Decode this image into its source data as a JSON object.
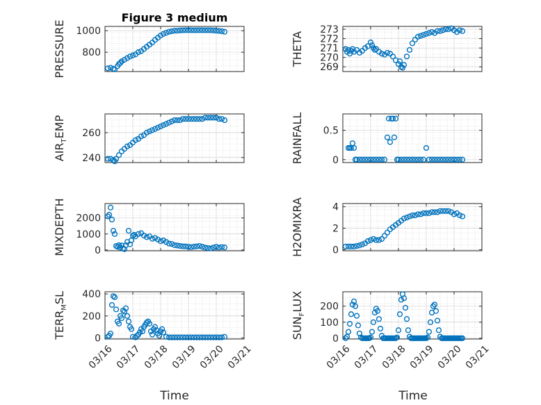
{
  "figure": {
    "title": "Figure 3 medium",
    "xlabel": "Time",
    "marker_color": "#0072BD"
  },
  "chart_data": [
    {
      "id": "pressure",
      "type": "scatter",
      "ylabel": "PRESSURE",
      "ylim": [
        620,
        1040
      ],
      "yticks": [
        800,
        1000
      ],
      "ytick_labels": [
        "800",
        "1000"
      ],
      "x_dates": [
        "03/16",
        "03/17",
        "03/18",
        "03/19",
        "03/20",
        "03/21"
      ],
      "xlim": [
        0,
        5
      ],
      "grid": "on",
      "series": [
        {
          "x": [
            0.1,
            0.2,
            0.3,
            0.35,
            0.45,
            0.5,
            0.55,
            0.6,
            0.7,
            0.8,
            0.9,
            1.0,
            1.1,
            1.2,
            1.3,
            1.4,
            1.5,
            1.6,
            1.7,
            1.8,
            1.9,
            2.0,
            2.1,
            2.2,
            2.3,
            2.4,
            2.5,
            2.6,
            2.7,
            2.8,
            2.9,
            3.0,
            3.1,
            3.2,
            3.3,
            3.4,
            3.5,
            3.6,
            3.7,
            3.8,
            3.9,
            4.0,
            4.1,
            4.2,
            4.3
          ],
          "y": [
            650,
            655,
            645,
            640,
            670,
            690,
            700,
            715,
            730,
            745,
            760,
            770,
            780,
            800,
            810,
            830,
            850,
            870,
            890,
            915,
            935,
            955,
            970,
            980,
            990,
            995,
            1000,
            1000,
            1003,
            1004,
            1005,
            1005,
            1005,
            1004,
            1005,
            1005,
            1005,
            1004,
            1005,
            1004,
            1003,
            1000,
            998,
            995,
            990
          ]
        }
      ]
    },
    {
      "id": "theta",
      "type": "scatter",
      "ylabel": "THETA",
      "ylim": [
        268.5,
        273.3
      ],
      "yticks": [
        269,
        270,
        271,
        272,
        273
      ],
      "ytick_labels": [
        "269",
        "270",
        "271",
        "272",
        "273"
      ],
      "x_dates": [
        "03/16",
        "03/17",
        "03/18",
        "03/19",
        "03/20",
        "03/21"
      ],
      "xlim": [
        0,
        5
      ],
      "grid": "on",
      "series": [
        {
          "x": [
            0.1,
            0.15,
            0.2,
            0.25,
            0.3,
            0.35,
            0.4,
            0.5,
            0.6,
            0.7,
            0.8,
            0.9,
            1.0,
            1.05,
            1.1,
            1.15,
            1.2,
            1.3,
            1.4,
            1.5,
            1.6,
            1.7,
            1.8,
            1.9,
            2.0,
            2.05,
            2.1,
            2.15,
            2.2,
            2.3,
            2.4,
            2.5,
            2.6,
            2.7,
            2.8,
            2.9,
            3.0,
            3.1,
            3.2,
            3.3,
            3.4,
            3.5,
            3.6,
            3.7,
            3.8,
            3.9,
            4.0,
            4.1,
            4.2,
            4.3
          ],
          "y": [
            270.9,
            270.6,
            270.8,
            270.4,
            270.7,
            270.9,
            270.6,
            270.8,
            270.5,
            270.7,
            271.0,
            271.2,
            271.6,
            271.3,
            271.0,
            270.8,
            270.9,
            270.6,
            270.4,
            270.3,
            270.5,
            270.4,
            270.1,
            269.7,
            269.3,
            269.6,
            269.0,
            268.9,
            269.2,
            270.1,
            270.8,
            271.5,
            271.9,
            272.2,
            272.3,
            272.4,
            272.5,
            272.6,
            272.7,
            272.6,
            272.8,
            272.8,
            272.9,
            273.0,
            273.0,
            273.1,
            272.9,
            272.7,
            272.9,
            272.8
          ]
        }
      ]
    },
    {
      "id": "air_temp",
      "type": "scatter",
      "ylabel": "AIR_TEMP",
      "ylabel_main": "AIR",
      "ylabel_sub": "T",
      "ylabel_rest": "EMP",
      "ylim": [
        236,
        275
      ],
      "yticks": [
        240,
        260
      ],
      "ytick_labels": [
        "240",
        "260"
      ],
      "x_dates": [
        "03/16",
        "03/17",
        "03/18",
        "03/19",
        "03/20",
        "03/21"
      ],
      "xlim": [
        0,
        5
      ],
      "grid": "on",
      "series": [
        {
          "x": [
            0.1,
            0.2,
            0.3,
            0.35,
            0.4,
            0.5,
            0.6,
            0.7,
            0.8,
            0.9,
            1.0,
            1.1,
            1.2,
            1.3,
            1.4,
            1.5,
            1.6,
            1.7,
            1.8,
            1.9,
            2.0,
            2.1,
            2.2,
            2.3,
            2.4,
            2.5,
            2.6,
            2.7,
            2.8,
            2.9,
            3.0,
            3.1,
            3.2,
            3.3,
            3.4,
            3.5,
            3.6,
            3.7,
            3.8,
            3.9,
            4.0,
            4.1,
            4.2,
            4.3
          ],
          "y": [
            239,
            239,
            238,
            237,
            239,
            242,
            245,
            247,
            249,
            250,
            252,
            254,
            255,
            257,
            258,
            260,
            261,
            262,
            263,
            264,
            265,
            266,
            267,
            268,
            269,
            270,
            270,
            270,
            271,
            271,
            271,
            271,
            271,
            271,
            271,
            271,
            272,
            272,
            272,
            272,
            272,
            271,
            271,
            270
          ]
        }
      ]
    },
    {
      "id": "rainfall",
      "type": "scatter",
      "ylabel": "RAINFALL",
      "ylim": [
        -0.05,
        0.78
      ],
      "yticks": [
        0,
        0.5
      ],
      "ytick_labels": [
        "0",
        "0.5"
      ],
      "x_dates": [
        "03/16",
        "03/17",
        "03/18",
        "03/19",
        "03/20",
        "03/21"
      ],
      "xlim": [
        0,
        5
      ],
      "grid": "on",
      "series": [
        {
          "x": [
            0.2,
            0.25,
            0.3,
            0.35,
            0.4,
            0.45,
            0.5,
            0.6,
            0.7,
            0.8,
            0.9,
            1.0,
            1.1,
            1.2,
            1.3,
            1.4,
            1.5,
            1.6,
            1.65,
            1.7,
            1.75,
            1.8,
            1.85,
            1.9,
            1.95,
            2.0,
            2.1,
            2.2,
            2.3,
            2.4,
            2.5,
            2.6,
            2.7,
            2.8,
            2.9,
            3.0,
            3.1,
            3.2,
            3.3,
            3.4,
            3.5,
            3.6,
            3.7,
            3.8,
            3.9,
            4.0,
            4.1,
            4.2,
            4.3
          ],
          "y": [
            0.2,
            0.2,
            0.2,
            0.28,
            0.2,
            0,
            0,
            0,
            0,
            0,
            0,
            0,
            0,
            0,
            0,
            0,
            0,
            0.38,
            0.7,
            0.3,
            0.7,
            0.7,
            0.38,
            0.7,
            0,
            0,
            0,
            0,
            0,
            0,
            0,
            0,
            0,
            0,
            0,
            0.2,
            0,
            0,
            0,
            0,
            0,
            0,
            0,
            0,
            0,
            0,
            0,
            0,
            0
          ]
        }
      ]
    },
    {
      "id": "mixdepth",
      "type": "scatter",
      "ylabel": "MIXDEPTH",
      "ylim": [
        -50,
        2900
      ],
      "yticks": [
        0,
        1000,
        2000
      ],
      "ytick_labels": [
        "0",
        "1000",
        "2000"
      ],
      "x_dates": [
        "03/16",
        "03/17",
        "03/18",
        "03/19",
        "03/20",
        "03/21"
      ],
      "xlim": [
        0,
        5
      ],
      "grid": "on",
      "series": [
        {
          "x": [
            0.1,
            0.15,
            0.2,
            0.25,
            0.3,
            0.35,
            0.4,
            0.45,
            0.5,
            0.55,
            0.6,
            0.65,
            0.7,
            0.75,
            0.8,
            0.85,
            0.9,
            0.95,
            1.0,
            1.05,
            1.1,
            1.2,
            1.3,
            1.4,
            1.5,
            1.6,
            1.7,
            1.8,
            1.9,
            2.0,
            2.1,
            2.2,
            2.3,
            2.4,
            2.5,
            2.6,
            2.7,
            2.8,
            2.9,
            3.0,
            3.1,
            3.2,
            3.3,
            3.4,
            3.5,
            3.6,
            3.7,
            3.8,
            3.9,
            4.0,
            4.1,
            4.2,
            4.3
          ],
          "y": [
            2100,
            2200,
            2650,
            1900,
            1200,
            1000,
            250,
            200,
            300,
            150,
            280,
            100,
            50,
            300,
            500,
            1200,
            350,
            600,
            900,
            950,
            850,
            1000,
            1050,
            900,
            800,
            850,
            700,
            750,
            650,
            550,
            600,
            500,
            400,
            380,
            300,
            280,
            250,
            230,
            220,
            200,
            180,
            210,
            230,
            250,
            200,
            150,
            120,
            100,
            150,
            200,
            150,
            180,
            160
          ]
        }
      ]
    },
    {
      "id": "h2omixra",
      "type": "scatter",
      "ylabel": "H2OMIXRA",
      "ylim": [
        -0.1,
        4.3
      ],
      "yticks": [
        0,
        2,
        4
      ],
      "ytick_labels": [
        "0",
        "2",
        "4"
      ],
      "x_dates": [
        "03/16",
        "03/17",
        "03/18",
        "03/19",
        "03/20",
        "03/21"
      ],
      "xlim": [
        0,
        5
      ],
      "grid": "on",
      "series": [
        {
          "x": [
            0.1,
            0.2,
            0.3,
            0.4,
            0.5,
            0.6,
            0.7,
            0.8,
            0.9,
            1.0,
            1.1,
            1.2,
            1.3,
            1.4,
            1.5,
            1.6,
            1.7,
            1.8,
            1.9,
            2.0,
            2.1,
            2.2,
            2.3,
            2.4,
            2.5,
            2.6,
            2.7,
            2.8,
            2.9,
            3.0,
            3.1,
            3.2,
            3.3,
            3.4,
            3.5,
            3.6,
            3.7,
            3.8,
            3.9,
            4.0,
            4.1,
            4.2,
            4.3
          ],
          "y": [
            0.3,
            0.3,
            0.3,
            0.3,
            0.35,
            0.4,
            0.5,
            0.6,
            0.8,
            0.9,
            1.0,
            0.9,
            0.9,
            1.0,
            1.3,
            1.6,
            1.9,
            2.1,
            2.3,
            2.5,
            2.7,
            2.9,
            3.0,
            3.1,
            3.2,
            3.2,
            3.3,
            3.3,
            3.4,
            3.4,
            3.4,
            3.5,
            3.5,
            3.5,
            3.6,
            3.6,
            3.6,
            3.6,
            3.5,
            3.3,
            3.4,
            3.2,
            3.1
          ]
        }
      ]
    },
    {
      "id": "terr_msl",
      "type": "scatter",
      "ylabel": "TERR_MSL",
      "ylabel_main": "TERR",
      "ylabel_sub": "M",
      "ylabel_rest": "SL",
      "ylim": [
        -10,
        420
      ],
      "yticks": [
        0,
        200,
        400
      ],
      "ytick_labels": [
        "0",
        "200",
        "400"
      ],
      "x_dates": [
        "03/16",
        "03/17",
        "03/18",
        "03/19",
        "03/20",
        "03/21"
      ],
      "xlim": [
        0,
        5
      ],
      "grid": "on",
      "series": [
        {
          "x": [
            0.1,
            0.15,
            0.2,
            0.25,
            0.3,
            0.35,
            0.4,
            0.45,
            0.5,
            0.55,
            0.6,
            0.65,
            0.7,
            0.75,
            0.8,
            0.85,
            0.9,
            0.95,
            1.0,
            1.1,
            1.15,
            1.2,
            1.25,
            1.3,
            1.35,
            1.4,
            1.45,
            1.5,
            1.55,
            1.6,
            1.65,
            1.7,
            1.75,
            1.8,
            1.85,
            1.9,
            1.95,
            2.0,
            2.05,
            2.1,
            2.2,
            2.3,
            2.4,
            2.5,
            2.6,
            2.7,
            2.8,
            2.9,
            3.0,
            3.1,
            3.2,
            3.3,
            3.4,
            3.5,
            3.6,
            3.7,
            3.8,
            3.9,
            4.0,
            4.1,
            4.2,
            4.3
          ],
          "y": [
            10,
            20,
            40,
            300,
            380,
            370,
            260,
            150,
            130,
            200,
            180,
            250,
            240,
            270,
            200,
            150,
            100,
            80,
            10,
            5,
            20,
            30,
            50,
            80,
            60,
            100,
            120,
            140,
            150,
            130,
            60,
            30,
            80,
            100,
            70,
            40,
            20,
            60,
            80,
            50,
            10,
            5,
            5,
            5,
            5,
            5,
            5,
            5,
            5,
            5,
            5,
            5,
            5,
            5,
            5,
            5,
            5,
            5,
            5,
            5,
            5,
            10
          ]
        }
      ]
    },
    {
      "id": "sun_flux",
      "type": "scatter",
      "ylabel": "SUN_FLUX",
      "ylabel_main": "SUN",
      "ylabel_sub": "F",
      "ylabel_rest": "LUX",
      "ylim": [
        -5,
        290
      ],
      "yticks": [
        0,
        100,
        200
      ],
      "ytick_labels": [
        "0",
        "100",
        "200"
      ],
      "x_dates": [
        "03/16",
        "03/17",
        "03/18",
        "03/19",
        "03/20",
        "03/21"
      ],
      "xlim": [
        0,
        5
      ],
      "grid": "on",
      "series": [
        {
          "x": [
            0.1,
            0.15,
            0.2,
            0.25,
            0.3,
            0.35,
            0.4,
            0.45,
            0.5,
            0.55,
            0.6,
            0.65,
            0.7,
            0.75,
            0.8,
            0.85,
            0.9,
            0.95,
            1.0,
            1.05,
            1.1,
            1.15,
            1.2,
            1.25,
            1.3,
            1.35,
            1.4,
            1.45,
            1.5,
            1.55,
            1.6,
            1.65,
            1.7,
            1.75,
            1.8,
            1.85,
            1.9,
            1.95,
            2.0,
            2.05,
            2.1,
            2.15,
            2.2,
            2.25,
            2.3,
            2.35,
            2.4,
            2.45,
            2.5,
            2.55,
            2.6,
            2.65,
            2.7,
            2.75,
            2.8,
            2.85,
            2.9,
            2.95,
            3.0,
            3.05,
            3.1,
            3.15,
            3.2,
            3.25,
            3.3,
            3.35,
            3.4,
            3.45,
            3.5,
            3.55,
            3.6,
            3.65,
            3.7,
            3.75,
            3.8,
            3.85,
            3.9,
            3.95,
            4.0,
            4.05,
            4.1,
            4.15,
            4.2,
            4.25,
            4.3
          ],
          "y": [
            0,
            10,
            40,
            90,
            150,
            210,
            230,
            200,
            140,
            80,
            30,
            5,
            0,
            0,
            0,
            0,
            0,
            0,
            5,
            40,
            100,
            160,
            185,
            170,
            120,
            60,
            15,
            0,
            0,
            0,
            0,
            0,
            0,
            0,
            0,
            0,
            0,
            5,
            50,
            150,
            240,
            275,
            250,
            190,
            120,
            50,
            10,
            0,
            0,
            0,
            0,
            0,
            0,
            0,
            0,
            0,
            0,
            0,
            0,
            5,
            40,
            100,
            160,
            200,
            210,
            170,
            110,
            50,
            10,
            0,
            0,
            0,
            0,
            0,
            0,
            0,
            0,
            0,
            0,
            0,
            0,
            0,
            0,
            0,
            0
          ]
        }
      ]
    }
  ]
}
